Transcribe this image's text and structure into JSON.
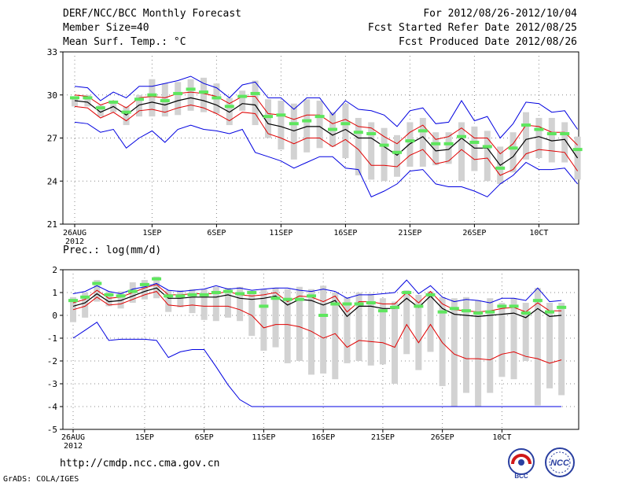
{
  "header": {
    "title": "DERF/NCC/BCC Monthly Forecast",
    "member_size": "Member Size=40",
    "variable": "Mean Surf. Temp.: °C",
    "period": "For 2012/08/26-2012/10/04",
    "started": "Fcst Started Refer Date 2012/08/25",
    "produced": "Fcst Produced Date 2012/08/26"
  },
  "footer": {
    "url": "http://cmdp.ncc.cma.gov.cn",
    "grads": "GrADS: COLA/IGES",
    "logo_bcc": "BCC",
    "logo_ncc": "NCC"
  },
  "colors": {
    "box": "#d2d2d2",
    "median": "#5ee65e",
    "mean": "#000000",
    "std": "#e00000",
    "envelope": "#0000e0",
    "grid": "#888888"
  },
  "chart_data": [
    {
      "type": "box",
      "title": "Mean Surf. Temp.: °C",
      "ylim": [
        21,
        33
      ],
      "yticks": [
        21,
        24,
        27,
        30,
        33
      ],
      "xticks": [
        {
          "day": 0,
          "label": "26AUG",
          "sub": "2012"
        },
        {
          "day": 6,
          "label": "1SEP"
        },
        {
          "day": 11,
          "label": "6SEP"
        },
        {
          "day": 16,
          "label": "11SEP"
        },
        {
          "day": 21,
          "label": "16SEP"
        },
        {
          "day": 26,
          "label": "21SEP"
        },
        {
          "day": 31,
          "label": "26SEP"
        },
        {
          "day": 36,
          "label": "10CT"
        }
      ],
      "series": {
        "mean": [
          29.6,
          29.5,
          28.8,
          29.2,
          28.6,
          29.3,
          29.5,
          29.3,
          29.6,
          29.8,
          29.6,
          29.3,
          28.8,
          29.4,
          29.3,
          28.0,
          27.8,
          27.5,
          27.8,
          27.8,
          27.2,
          27.6,
          27.0,
          27.0,
          26.4,
          25.8,
          26.6,
          27.1,
          26.1,
          26.2,
          27.0,
          26.3,
          26.3,
          25.1,
          25.7,
          26.9,
          27.1,
          26.8,
          26.9,
          25.6
        ],
        "std_hi": [
          30.0,
          29.9,
          29.3,
          29.6,
          29.1,
          29.8,
          29.9,
          29.8,
          30.1,
          30.2,
          30.1,
          29.9,
          29.4,
          29.9,
          29.9,
          28.7,
          28.6,
          28.3,
          28.6,
          28.6,
          28.0,
          28.3,
          27.8,
          27.7,
          27.1,
          26.6,
          27.4,
          27.9,
          26.9,
          27.1,
          27.7,
          27.0,
          27.0,
          25.9,
          26.6,
          27.9,
          27.8,
          27.4,
          27.4,
          26.5
        ],
        "std_lo": [
          29.2,
          29.1,
          28.4,
          28.8,
          28.2,
          28.9,
          29.0,
          28.8,
          29.1,
          29.3,
          29.1,
          28.7,
          28.2,
          28.8,
          28.7,
          27.3,
          27.0,
          26.6,
          27.0,
          27.0,
          26.4,
          26.9,
          26.2,
          25.1,
          25.1,
          25.0,
          25.8,
          26.2,
          25.2,
          25.4,
          26.2,
          25.5,
          25.6,
          24.4,
          24.8,
          25.9,
          26.2,
          26.1,
          26.0,
          24.7
        ],
        "max": [
          30.6,
          30.5,
          29.6,
          30.2,
          29.8,
          30.6,
          30.6,
          30.8,
          31.0,
          31.3,
          30.8,
          30.5,
          29.8,
          30.7,
          30.9,
          29.8,
          29.8,
          29.0,
          29.8,
          29.8,
          28.6,
          29.6,
          29.0,
          28.9,
          28.6,
          27.8,
          28.9,
          29.1,
          28.0,
          28.1,
          29.6,
          28.2,
          28.5,
          27.0,
          28.0,
          29.5,
          29.4,
          28.8,
          28.9,
          27.6
        ],
        "min": [
          28.1,
          28.0,
          27.4,
          27.6,
          26.3,
          27.0,
          27.5,
          26.7,
          27.6,
          27.9,
          27.6,
          27.5,
          27.3,
          27.6,
          26.0,
          25.7,
          25.4,
          24.9,
          25.3,
          25.7,
          25.7,
          24.9,
          24.8,
          22.9,
          23.3,
          23.8,
          24.7,
          24.8,
          23.8,
          23.6,
          23.6,
          23.3,
          22.9,
          23.8,
          24.4,
          25.3,
          24.8,
          24.8,
          24.9,
          23.8
        ],
        "box_hi": [
          29.9,
          30.0,
          29.3,
          29.6,
          29.2,
          30.0,
          31.1,
          30.8,
          30.9,
          31.1,
          31.2,
          30.8,
          29.8,
          30.3,
          31.0,
          29.7,
          29.6,
          29.4,
          29.7,
          29.6,
          28.8,
          29.4,
          28.4,
          28.1,
          27.7,
          27.2,
          28.1,
          28.4,
          27.4,
          27.4,
          28.1,
          27.8,
          27.5,
          26.4,
          27.4,
          28.8,
          28.4,
          28.4,
          28.1,
          27.1
        ],
        "box_lo": [
          29.2,
          29.2,
          28.5,
          28.8,
          27.9,
          28.5,
          28.5,
          28.5,
          28.6,
          28.9,
          28.8,
          28.7,
          27.9,
          28.9,
          27.9,
          27.0,
          26.2,
          25.5,
          26.0,
          26.3,
          26.4,
          25.6,
          24.4,
          24.1,
          24.0,
          24.3,
          25.0,
          25.0,
          25.1,
          25.2,
          24.0,
          24.7,
          24.0,
          23.8,
          24.6,
          25.5,
          25.6,
          25.3,
          25.3,
          24.1
        ],
        "median": [
          29.8,
          29.8,
          29.1,
          29.5,
          28.8,
          29.7,
          30.0,
          29.6,
          30.1,
          30.4,
          30.2,
          29.8,
          29.2,
          29.9,
          30.1,
          28.5,
          28.6,
          28.0,
          28.2,
          28.5,
          27.6,
          28.0,
          27.4,
          27.3,
          26.5,
          26.0,
          26.8,
          27.5,
          26.6,
          26.6,
          27.1,
          26.7,
          26.4,
          24.9,
          26.3,
          27.9,
          27.6,
          27.3,
          27.3,
          26.2
        ]
      }
    },
    {
      "type": "box",
      "title": "Prec.: log(mm/d)",
      "ylim": [
        -5,
        2
      ],
      "yticks": [
        -5,
        -4,
        -3,
        -2,
        -1,
        0,
        1,
        2
      ],
      "xticks": [
        {
          "day": 0,
          "label": "26AUG",
          "sub": "2012"
        },
        {
          "day": 6,
          "label": "1SEP"
        },
        {
          "day": 11,
          "label": "6SEP"
        },
        {
          "day": 16,
          "label": "11SEP"
        },
        {
          "day": 21,
          "label": "16SEP"
        },
        {
          "day": 26,
          "label": "21SEP"
        },
        {
          "day": 31,
          "label": "26SEP"
        },
        {
          "day": 36,
          "label": "10CT"
        }
      ],
      "series": {
        "mean": [
          0.4,
          0.55,
          0.95,
          0.6,
          0.65,
          0.85,
          1.05,
          1.2,
          0.75,
          0.75,
          0.8,
          0.8,
          0.8,
          0.9,
          0.75,
          0.7,
          0.75,
          0.85,
          0.45,
          0.7,
          0.65,
          0.45,
          0.65,
          -0.05,
          0.4,
          0.4,
          0.3,
          0.3,
          0.75,
          0.35,
          0.85,
          0.3,
          0.05,
          0.0,
          -0.05,
          0.0,
          0.05,
          0.1,
          -0.1,
          0.3,
          -0.05,
          0.0
        ],
        "std_hi": [
          0.55,
          0.7,
          1.1,
          0.75,
          0.8,
          1.0,
          1.2,
          1.35,
          0.9,
          0.9,
          0.95,
          0.95,
          0.95,
          1.05,
          0.9,
          0.85,
          0.9,
          1.0,
          0.6,
          0.85,
          0.8,
          0.6,
          0.85,
          0.15,
          0.6,
          0.6,
          0.5,
          0.5,
          1.0,
          0.55,
          1.05,
          0.5,
          0.25,
          0.2,
          0.15,
          0.2,
          0.3,
          0.35,
          0.15,
          0.55,
          0.2,
          0.2
        ],
        "std_lo": [
          0.25,
          0.4,
          0.8,
          0.45,
          0.5,
          0.7,
          0.9,
          1.05,
          0.45,
          0.4,
          0.45,
          0.4,
          0.4,
          0.4,
          0.25,
          0.0,
          -0.55,
          -0.4,
          -0.4,
          -0.5,
          -0.7,
          -1.0,
          -0.8,
          -1.4,
          -1.1,
          -1.15,
          -1.2,
          -1.4,
          -0.4,
          -1.2,
          -0.4,
          -1.2,
          -1.7,
          -1.9,
          -1.9,
          -1.95,
          -1.7,
          -1.6,
          -1.8,
          -1.9,
          -2.1,
          -1.95
        ],
        "max": [
          0.95,
          1.05,
          1.3,
          1.05,
          0.95,
          1.15,
          1.25,
          1.4,
          1.1,
          1.05,
          1.1,
          1.15,
          1.3,
          1.15,
          1.2,
          1.1,
          1.15,
          1.2,
          1.2,
          1.1,
          1.05,
          1.15,
          1.05,
          0.75,
          0.9,
          0.9,
          0.95,
          1.0,
          1.55,
          0.95,
          1.3,
          0.8,
          0.6,
          0.7,
          0.65,
          0.55,
          0.75,
          0.75,
          0.65,
          1.2,
          0.6,
          0.65
        ],
        "min": [
          -1.0,
          -0.65,
          -0.3,
          -1.1,
          -1.05,
          -1.05,
          -1.05,
          -1.1,
          -1.85,
          -1.6,
          -1.5,
          -1.5,
          -2.25,
          -3.05,
          -3.7,
          -4.0,
          -4.0,
          -4.0,
          -4.0,
          -4.0,
          -4.0,
          -4.0,
          -4.0,
          -4.0,
          -4.0,
          -4.0,
          -4.0,
          -4.0,
          -4.0,
          -4.0,
          -4.0,
          -4.0,
          -4.0,
          -4.0,
          -4.0,
          -4.0,
          -4.0,
          -4.0,
          -4.0,
          -4.0,
          -4.0,
          -4.0
        ],
        "box_hi": [
          0.8,
          1.0,
          1.55,
          1.05,
          1.05,
          1.45,
          1.55,
          1.7,
          1.1,
          1.1,
          1.15,
          1.15,
          1.25,
          1.2,
          1.25,
          1.05,
          1.15,
          1.2,
          1.15,
          1.25,
          1.15,
          1.3,
          1.0,
          0.8,
          1.0,
          0.95,
          0.75,
          0.6,
          1.1,
          0.9,
          1.05,
          0.8,
          0.75,
          0.8,
          0.65,
          0.75,
          0.55,
          0.75,
          0.55,
          1.2,
          0.55,
          0.55
        ],
        "box_lo": [
          -0.3,
          -0.1,
          0.6,
          0.4,
          0.3,
          0.55,
          0.7,
          0.75,
          0.15,
          0.35,
          0.1,
          -0.2,
          -0.25,
          -0.1,
          -0.25,
          -0.9,
          -1.55,
          -1.4,
          -2.1,
          -2.0,
          -2.6,
          -2.55,
          -2.8,
          -2.1,
          -2.0,
          -2.2,
          -2.15,
          -3.0,
          -1.7,
          -2.4,
          -1.6,
          -3.1,
          -4.0,
          -3.4,
          -4.0,
          -3.4,
          -2.7,
          -2.8,
          -2.0,
          -3.95,
          -3.2,
          -3.5
        ],
        "median": [
          0.65,
          0.8,
          1.4,
          0.9,
          0.85,
          1.05,
          1.35,
          1.6,
          0.85,
          0.85,
          0.9,
          0.9,
          1.0,
          1.05,
          0.95,
          1.0,
          0.4,
          0.75,
          0.7,
          0.7,
          0.85,
          0.0,
          0.5,
          0.5,
          0.5,
          0.55,
          0.2,
          0.35,
          1.0,
          0.4,
          0.9,
          0.15,
          0.3,
          0.2,
          0.1,
          0.15,
          0.4,
          0.4,
          0.1,
          0.65,
          0.15,
          0.35
        ]
      }
    }
  ]
}
